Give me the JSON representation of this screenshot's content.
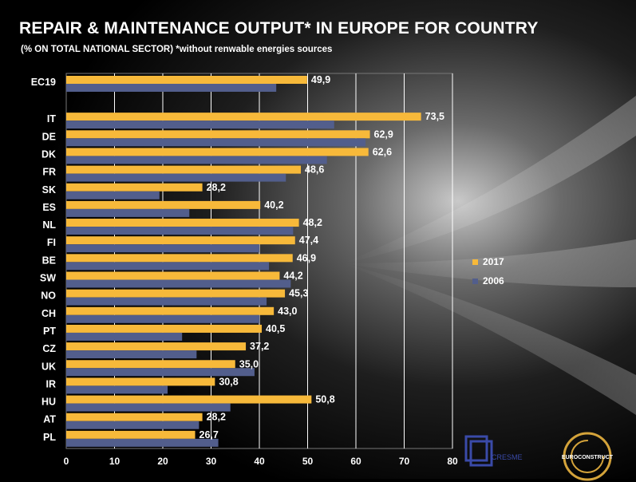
{
  "title": "REPAIR & MAINTENANCE OUTPUT* IN EUROPE FOR COUNTRY",
  "subtitle": "(% ON TOTAL NATIONAL SECTOR)  *without renwable energies sources",
  "colors": {
    "series_2017": "#f7b93a",
    "series_2006": "#525e8c",
    "text": "#ffffff",
    "grid": "#ffffff"
  },
  "legend": [
    {
      "name": "2017"
    },
    {
      "name": "2006"
    }
  ],
  "logos": {
    "cresme": "CRESME",
    "euroconstruct": "EUROCONSTRUCT"
  },
  "chart_data": {
    "type": "bar",
    "orientation": "horizontal",
    "title": "REPAIR & MAINTENANCE OUTPUT* IN EUROPE FOR COUNTRY",
    "subtitle": "(% ON TOTAL NATIONAL SECTOR)  *without renwable energies sources",
    "categories": [
      "EC19",
      "IT",
      "DE",
      "DK",
      "FR",
      "SK",
      "ES",
      "NL",
      "FI",
      "BE",
      "SW",
      "NO",
      "CH",
      "PT",
      "CZ",
      "UK",
      "IR",
      "HU",
      "AT",
      "PL"
    ],
    "series": [
      {
        "name": "2017",
        "values": [
          49.9,
          73.5,
          62.9,
          62.6,
          48.6,
          28.2,
          40.2,
          48.2,
          47.4,
          46.9,
          44.2,
          45.3,
          43.0,
          40.5,
          37.2,
          35.0,
          30.8,
          50.8,
          28.2,
          26.7
        ]
      },
      {
        "name": "2006",
        "values": [
          43.5,
          55.5,
          62.0,
          54.0,
          45.5,
          19.3,
          25.5,
          47.0,
          40.0,
          42.0,
          46.5,
          41.5,
          40.0,
          24.0,
          27.0,
          39.0,
          21.0,
          34.0,
          27.5,
          31.5
        ]
      }
    ],
    "data_labels_2017": [
      "49,9",
      "73,5",
      "62,9",
      "62,6",
      "48,6",
      "28,2",
      "40,2",
      "48,2",
      "47,4",
      "46,9",
      "44,2",
      "45,3",
      "43,0",
      "40,5",
      "37,2",
      "35,0",
      "30,8",
      "50,8",
      "28,2",
      "26,7"
    ],
    "x_ticks": [
      "0",
      "10",
      "20",
      "30",
      "40",
      "50",
      "60",
      "70",
      "80"
    ],
    "xlim": [
      0,
      80
    ],
    "grid": true,
    "legend_position": "right"
  }
}
